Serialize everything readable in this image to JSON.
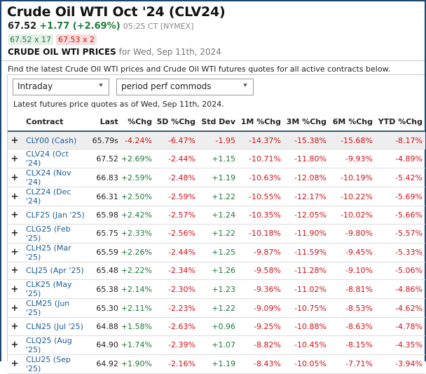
{
  "header": {
    "title": "Crude Oil WTI Oct '24 (CLV24)",
    "last": "67.52",
    "change": "+1.77 (+2.69%)",
    "time": "05:25 CT [NYMEX]",
    "bid": "67.52 x 17",
    "ask": "67.53 x 2",
    "section_title": "CRUDE OIL WTI PRICES",
    "section_date": "for Wed, Sep 11th, 2024"
  },
  "intro": "Find the latest Crude Oil WTI prices and Crude Oil WTI futures quotes for all active contracts below.",
  "controls": {
    "period": "Intraday",
    "view": "period perf commods"
  },
  "as_of": "Latest futures price quotes as of Wed, Sep 11th, 2024.",
  "colors": {
    "up": "#1f7a3c",
    "down": "#d0141a",
    "link": "#1c5d9a"
  },
  "table": {
    "columns": [
      "Contract",
      "Last",
      "%Chg",
      "5D %Chg",
      "Std Dev",
      "1M %Chg",
      "3M %Chg",
      "6M %Chg",
      "YTD %Chg"
    ],
    "rows": [
      [
        "CLY00 (Cash)",
        "65.79s",
        "-4.24%",
        "-6.47%",
        "-1.95",
        "-14.37%",
        "-15.38%",
        "-15.68%",
        "-8.17%"
      ],
      [
        "CLV24 (Oct '24)",
        "67.52",
        "+2.69%",
        "-2.44%",
        "+1.15",
        "-10.71%",
        "-11.80%",
        "-9.93%",
        "-4.89%"
      ],
      [
        "CLX24 (Nov '24)",
        "66.83",
        "+2.59%",
        "-2.48%",
        "+1.19",
        "-10.63%",
        "-12.08%",
        "-10.19%",
        "-5.42%"
      ],
      [
        "CLZ24 (Dec '24)",
        "66.31",
        "+2.50%",
        "-2.59%",
        "+1.22",
        "-10.55%",
        "-12.17%",
        "-10.22%",
        "-5.69%"
      ],
      [
        "CLF25 (Jan '25)",
        "65.98",
        "+2.42%",
        "-2.57%",
        "+1.24",
        "-10.35%",
        "-12.05%",
        "-10.02%",
        "-5.66%"
      ],
      [
        "CLG25 (Feb '25)",
        "65.75",
        "+2.33%",
        "-2.56%",
        "+1.22",
        "-10.18%",
        "-11.90%",
        "-9.80%",
        "-5.57%"
      ],
      [
        "CLH25 (Mar '25)",
        "65.59",
        "+2.26%",
        "-2.44%",
        "+1.25",
        "-9.87%",
        "-11.59%",
        "-9.45%",
        "-5.33%"
      ],
      [
        "CLJ25 (Apr '25)",
        "65.48",
        "+2.22%",
        "-2.34%",
        "+1.26",
        "-9.58%",
        "-11.28%",
        "-9.10%",
        "-5.06%"
      ],
      [
        "CLK25 (May '25)",
        "65.38",
        "+2.14%",
        "-2.30%",
        "+1.23",
        "-9.36%",
        "-11.02%",
        "-8.81%",
        "-4.86%"
      ],
      [
        "CLM25 (Jun '25)",
        "65.30",
        "+2.11%",
        "-2.23%",
        "+1.22",
        "-9.09%",
        "-10.75%",
        "-8.53%",
        "-4.62%"
      ],
      [
        "CLN25 (Jul '25)",
        "64.88",
        "+1.58%",
        "-2.63%",
        "+0.96",
        "-9.25%",
        "-10.88%",
        "-8.63%",
        "-4.78%"
      ],
      [
        "CLQ25 (Aug '25)",
        "64.90",
        "+1.74%",
        "-2.39%",
        "+1.07",
        "-8.82%",
        "-10.45%",
        "-8.15%",
        "-4.35%"
      ],
      [
        "CLU25 (Sep '25)",
        "64.92",
        "+1.90%",
        "-2.16%",
        "+1.19",
        "-8.43%",
        "-10.05%",
        "-7.71%",
        "-3.94%"
      ]
    ]
  }
}
